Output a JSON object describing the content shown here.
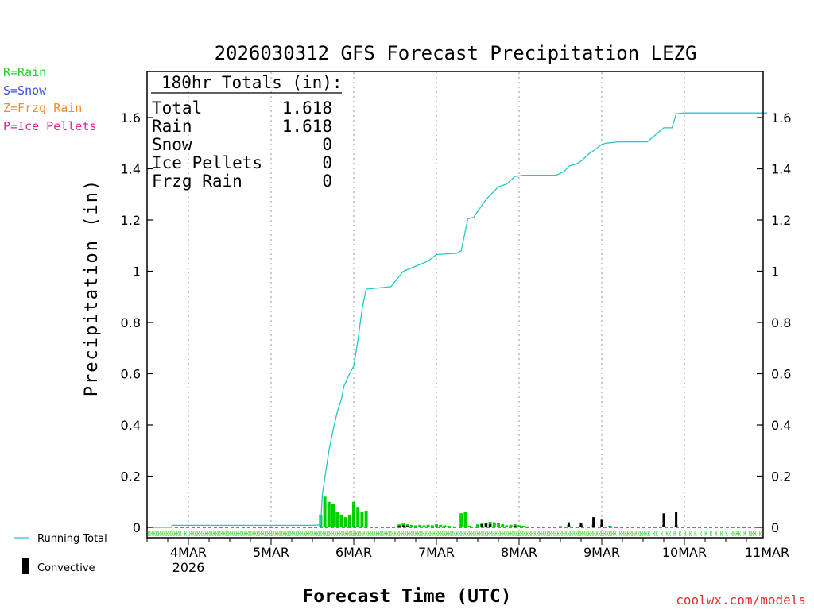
{
  "colors": {
    "rain": "#22d322",
    "snow": "#3b4fe0",
    "frzg": "#f28c28",
    "ice": "#e0249a",
    "running_total": "#22c8c8",
    "convective": "#000000",
    "precip_bar": "#00d000",
    "source": "#e03030"
  },
  "chart_data": {
    "type": "bar+line",
    "title": "2026030312 GFS Forecast Precipitation LEZG",
    "ylabel": "Precipitation (in)",
    "xlabel": "Forecast Time (UTC)",
    "ylim": [
      -0.04,
      1.78
    ],
    "xlim": [
      -0.5,
      7.0
    ],
    "y_ticks": [
      0,
      0.2,
      0.4,
      0.6,
      0.8,
      1,
      1.2,
      1.4,
      1.6
    ],
    "y_tick_labels": [
      "0",
      "0.2",
      "0.4",
      "0.6",
      "0.8",
      "1",
      "1.2",
      "1.4",
      "1.6"
    ],
    "x_ticks": [
      0,
      1,
      2,
      3,
      4,
      5,
      6,
      7
    ],
    "x_tick_labels": [
      "4MAR",
      "5MAR",
      "6MAR",
      "7MAR",
      "8MAR",
      "9MAR",
      "10MAR",
      "11MAR"
    ],
    "x_sub_label": "2026",
    "running_total": {
      "name": "Running Total",
      "x": [
        -0.5,
        -0.2,
        -0.2,
        1.5,
        1.6,
        1.62,
        1.7,
        1.75,
        1.8,
        1.85,
        1.88,
        1.95,
        2.0,
        2.05,
        2.1,
        2.15,
        2.3,
        2.45,
        2.6,
        2.75,
        2.9,
        3.0,
        3.25,
        3.3,
        3.38,
        3.45,
        3.6,
        3.75,
        3.85,
        3.95,
        4.05,
        4.45,
        4.55,
        4.6,
        4.7,
        4.75,
        4.85,
        4.9,
        5.0,
        5.05,
        5.2,
        5.4,
        5.55,
        5.75,
        5.77,
        5.85,
        5.9,
        6.0,
        7.0
      ],
      "y": [
        0.0,
        0.0,
        0.008,
        0.008,
        0.01,
        0.13,
        0.3,
        0.38,
        0.45,
        0.5,
        0.55,
        0.6,
        0.63,
        0.73,
        0.85,
        0.93,
        0.935,
        0.94,
        1.0,
        1.02,
        1.04,
        1.065,
        1.07,
        1.08,
        1.205,
        1.21,
        1.28,
        1.33,
        1.34,
        1.37,
        1.375,
        1.375,
        1.39,
        1.41,
        1.42,
        1.43,
        1.46,
        1.47,
        1.495,
        1.5,
        1.505,
        1.505,
        1.505,
        1.56,
        1.56,
        1.56,
        1.615,
        1.618,
        1.618
      ]
    },
    "precip_bars": {
      "name": "Precipitation",
      "x": [
        1.6,
        1.65,
        1.7,
        1.75,
        1.8,
        1.85,
        1.9,
        1.95,
        2.0,
        2.05,
        2.1,
        2.15,
        2.55,
        2.6,
        2.65,
        2.7,
        2.75,
        2.8,
        2.85,
        2.9,
        2.95,
        3.0,
        3.05,
        3.1,
        3.15,
        3.2,
        3.3,
        3.35,
        3.4,
        3.5,
        3.55,
        3.6,
        3.65,
        3.7,
        3.75,
        3.8,
        3.85,
        3.9,
        3.95,
        4.0,
        4.05,
        4.1,
        4.5,
        4.6,
        4.75,
        4.9,
        5.0,
        5.1,
        5.75,
        5.9
      ],
      "values": [
        0.05,
        0.12,
        0.1,
        0.09,
        0.06,
        0.05,
        0.04,
        0.05,
        0.1,
        0.08,
        0.06,
        0.065,
        0.012,
        0.015,
        0.012,
        0.01,
        0.008,
        0.01,
        0.008,
        0.01,
        0.008,
        0.012,
        0.01,
        0.008,
        0.006,
        0.004,
        0.055,
        0.06,
        0.006,
        0.012,
        0.015,
        0.018,
        0.022,
        0.02,
        0.018,
        0.012,
        0.008,
        0.01,
        0.012,
        0.008,
        0.006,
        0.004,
        0.005,
        0.01,
        0.008,
        0.012,
        0.01,
        0.006,
        0.008,
        0.01
      ]
    },
    "convective_bars": {
      "name": "Convective",
      "x": [
        2.55,
        2.6,
        2.65,
        3.55,
        3.6,
        3.65,
        3.95,
        4.6,
        4.75,
        4.9,
        5.0,
        5.1,
        5.75,
        5.9
      ],
      "values": [
        0.006,
        0.008,
        0.006,
        0.012,
        0.015,
        0.012,
        0.006,
        0.02,
        0.018,
        0.04,
        0.03,
        0.004,
        0.055,
        0.06
      ]
    },
    "ptype_row": {
      "string": "RRRRRRRRRRRRR R RRRRRRRRRRRRRRRRRRRRRRRRRRRRRRRRRRRRRRRRRRRRRRRRRRRRRRRRRRRRRRRRRRRRRRRRRRRRRRRRRRRRRRRRRRRRRRRRRRRRRRRRRRRRRRRRRRRRRRRRRRRRRRRRRRRRRRRRRRRRRRRRRRRRRRRRRRRRRRRRRRRRR RRRRRRRRRRRR RR R RR R R R R R R R R R R R  RRRR  R  RRR R"
    }
  },
  "legend": {
    "rain": "R=Rain",
    "snow": "S=Snow",
    "frzg": "Z=Frzg Rain",
    "ice": "P=Ice Pellets",
    "running_total": "Running Total",
    "convective": "Convective"
  },
  "totals": {
    "header": "180hr Totals (in):",
    "rows": [
      {
        "label": "Total",
        "value": "1.618"
      },
      {
        "label": "Rain",
        "value": "1.618"
      },
      {
        "label": "Snow",
        "value": "0"
      },
      {
        "label": "Ice Pellets",
        "value": "0"
      },
      {
        "label": "Frzg Rain",
        "value": "0"
      }
    ]
  },
  "source": "coolwx.com/models"
}
